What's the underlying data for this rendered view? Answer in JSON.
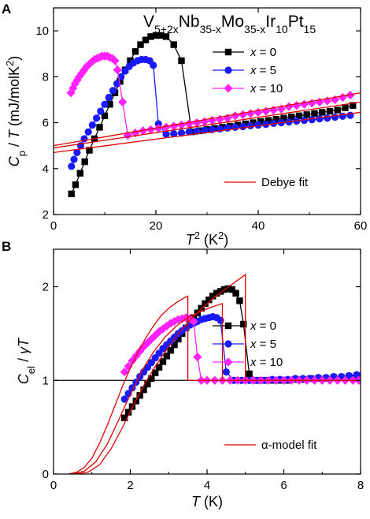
{
  "colors": {
    "x0": "#000000",
    "x5": "#1a1aff",
    "x10": "#ff22ff",
    "fit": "#e00000"
  },
  "chart_data": [
    {
      "panel_label": "A",
      "type": "scatter",
      "formula": {
        "base": "V",
        "parts": [
          {
            "t": "V",
            "s": "5+2x"
          },
          {
            "t": "Nb",
            "s": "35-x"
          },
          {
            "t": "Mo",
            "s": "35-x"
          },
          {
            "t": "Ir",
            "s": "10"
          },
          {
            "t": "Pt",
            "s": "15"
          }
        ]
      },
      "xlabel": {
        "main": "T",
        "sup": "2",
        "unit": " (K",
        "unit_sup": "2",
        "end": ")"
      },
      "ylabel": {
        "main": "C",
        "sub": "p",
        "mid": " / T (mJ/molK",
        "sup": "2",
        "end": ")"
      },
      "xlim": [
        0,
        60
      ],
      "ylim": [
        2,
        11
      ],
      "xticks": [
        0,
        20,
        40,
        60
      ],
      "yticks": [
        2,
        4,
        6,
        8,
        10
      ],
      "legend_position": "top-right",
      "series": [
        {
          "name": "x = 0",
          "var": "x",
          "val": " = 0",
          "color": "#000000",
          "marker": "square",
          "x": [
            3.5,
            4.3,
            5.2,
            6.1,
            7.0,
            8.0,
            9.0,
            10.0,
            11.0,
            12.0,
            13.0,
            14.0,
            15.0,
            16.0,
            17.0,
            18.0,
            19.0,
            20.0,
            21.0,
            22.0,
            23.5,
            25.0,
            27.0,
            28.5,
            30.0,
            31.5,
            33.0,
            34.5,
            36.0,
            37.5,
            39.0,
            40.5,
            42.0,
            43.5,
            45.0,
            46.5,
            48.0,
            49.5,
            51.0,
            52.5,
            54.0,
            55.5,
            57.0,
            58.5
          ],
          "y": [
            2.9,
            3.3,
            3.8,
            4.3,
            4.8,
            5.3,
            5.8,
            6.3,
            6.8,
            7.3,
            7.8,
            8.3,
            8.7,
            9.1,
            9.4,
            9.6,
            9.75,
            9.8,
            9.8,
            9.75,
            9.4,
            8.7,
            5.6,
            5.65,
            5.7,
            5.75,
            5.8,
            5.85,
            5.9,
            5.95,
            6.0,
            6.05,
            6.1,
            6.15,
            6.2,
            6.25,
            6.3,
            6.35,
            6.4,
            6.45,
            6.5,
            6.55,
            6.65,
            6.75
          ]
        },
        {
          "name": "x = 5",
          "var": "x",
          "val": " = 5",
          "color": "#1a1aff",
          "marker": "circle",
          "x": [
            3.5,
            4.0,
            4.6,
            5.3,
            6.0,
            6.8,
            7.6,
            8.4,
            9.2,
            10.0,
            10.8,
            11.6,
            12.4,
            13.2,
            14.0,
            14.8,
            15.6,
            16.4,
            17.2,
            18.0,
            18.8,
            19.5,
            20.5,
            22.0,
            23.5,
            25.0,
            26.5,
            28.0,
            29.5,
            31.0,
            32.5,
            34.0,
            35.5,
            37.0,
            38.5,
            40.0,
            41.5,
            43.0,
            44.5,
            46.0,
            47.5,
            49.0,
            50.5,
            52.0,
            53.5,
            55.0,
            56.5,
            58.0
          ],
          "y": [
            4.1,
            4.4,
            4.7,
            5.0,
            5.3,
            5.6,
            5.9,
            6.2,
            6.5,
            6.8,
            7.1,
            7.4,
            7.7,
            8.0,
            8.25,
            8.45,
            8.6,
            8.7,
            8.75,
            8.75,
            8.7,
            8.5,
            5.95,
            5.5,
            5.52,
            5.55,
            5.6,
            5.63,
            5.67,
            5.7,
            5.73,
            5.77,
            5.8,
            5.83,
            5.87,
            5.9,
            5.93,
            5.97,
            6.0,
            6.03,
            6.07,
            6.1,
            6.13,
            6.17,
            6.2,
            6.24,
            6.28,
            6.32
          ]
        },
        {
          "name": "x = 10",
          "var": "x",
          "val": " = 10",
          "color": "#ff22ff",
          "marker": "diamond",
          "x": [
            3.4,
            3.8,
            4.2,
            4.6,
            5.0,
            5.5,
            6.0,
            6.5,
            7.0,
            7.5,
            8.0,
            8.5,
            9.0,
            9.5,
            10.0,
            10.5,
            11.0,
            11.5,
            12.0,
            12.5,
            13.5,
            14.5,
            16.0,
            17.5,
            19.0,
            20.5,
            22.0,
            23.5,
            25.0,
            26.5,
            28.0,
            29.5,
            31.0,
            32.5,
            34.0,
            35.5,
            37.0,
            38.5,
            40.0,
            41.5,
            43.0,
            44.5,
            46.0,
            47.5,
            49.0,
            50.5,
            52.0,
            53.5,
            55.0,
            56.5,
            58.0
          ],
          "y": [
            7.3,
            7.5,
            7.7,
            7.85,
            8.0,
            8.15,
            8.3,
            8.45,
            8.55,
            8.65,
            8.75,
            8.8,
            8.85,
            8.9,
            8.9,
            8.9,
            8.85,
            8.8,
            8.7,
            8.3,
            6.9,
            5.45,
            5.55,
            5.65,
            5.7,
            5.75,
            5.8,
            5.85,
            5.9,
            5.95,
            6.0,
            6.05,
            6.1,
            6.15,
            6.2,
            6.3,
            6.35,
            6.4,
            6.45,
            6.5,
            6.55,
            6.6,
            6.7,
            6.75,
            6.8,
            6.85,
            6.9,
            6.95,
            7.0,
            7.1,
            7.2
          ]
        }
      ],
      "fit_name": "Debye fit",
      "fit_lines": [
        {
          "x": [
            0,
            60
          ],
          "y": [
            4.9,
            6.9
          ]
        },
        {
          "x": [
            0,
            60
          ],
          "y": [
            4.7,
            6.45
          ]
        },
        {
          "x": [
            0,
            60
          ],
          "y": [
            5.0,
            7.3
          ]
        }
      ]
    },
    {
      "panel_label": "B",
      "type": "scatter",
      "xlabel": {
        "main": "T",
        "unit": " (K)"
      },
      "ylabel": {
        "main": "C",
        "sub": "el",
        "mid": " / γT"
      },
      "xlim": [
        0,
        8
      ],
      "ylim": [
        0,
        2.4
      ],
      "xticks": [
        0,
        2,
        4,
        6,
        8
      ],
      "yticks": [
        0,
        1,
        2
      ],
      "legend_position": "top-right",
      "reference_line_y": 1,
      "series": [
        {
          "name": "x = 0",
          "var": "x",
          "val": " = 0",
          "color": "#000000",
          "marker": "square",
          "x": [
            1.85,
            1.95,
            2.05,
            2.15,
            2.25,
            2.35,
            2.45,
            2.55,
            2.65,
            2.75,
            2.85,
            2.95,
            3.05,
            3.15,
            3.25,
            3.35,
            3.45,
            3.55,
            3.65,
            3.75,
            3.85,
            3.95,
            4.05,
            4.15,
            4.25,
            4.35,
            4.45,
            4.55,
            4.65,
            4.75,
            4.85,
            4.95,
            5.1,
            5.3,
            5.5,
            5.7,
            5.9,
            6.1,
            6.3,
            6.5,
            6.7,
            6.9,
            7.1,
            7.3,
            7.5,
            7.7,
            7.9
          ],
          "y": [
            0.6,
            0.66,
            0.72,
            0.78,
            0.84,
            0.9,
            0.96,
            1.02,
            1.08,
            1.14,
            1.2,
            1.26,
            1.32,
            1.38,
            1.44,
            1.5,
            1.56,
            1.62,
            1.67,
            1.72,
            1.77,
            1.82,
            1.86,
            1.9,
            1.93,
            1.95,
            1.97,
            1.98,
            1.97,
            1.93,
            1.85,
            1.6,
            1.07,
            1.0,
            1.0,
            1.0,
            1.0,
            1.0,
            1.01,
            1.01,
            1.02,
            1.02,
            1.02,
            1.03,
            1.03,
            1.04,
            1.05
          ]
        },
        {
          "name": "x = 5",
          "var": "x",
          "val": " = 5",
          "color": "#1a1aff",
          "marker": "circle",
          "x": [
            1.85,
            1.95,
            2.05,
            2.15,
            2.25,
            2.35,
            2.45,
            2.55,
            2.65,
            2.75,
            2.85,
            2.95,
            3.05,
            3.15,
            3.25,
            3.35,
            3.45,
            3.55,
            3.65,
            3.75,
            3.85,
            3.95,
            4.05,
            4.15,
            4.25,
            4.35,
            4.5,
            4.7,
            4.9,
            5.1,
            5.3,
            5.5,
            5.7,
            5.9,
            6.1,
            6.3,
            6.5,
            6.7,
            6.9,
            7.1,
            7.3,
            7.5,
            7.7,
            7.9
          ],
          "y": [
            0.8,
            0.86,
            0.92,
            0.98,
            1.04,
            1.09,
            1.14,
            1.19,
            1.24,
            1.29,
            1.34,
            1.38,
            1.42,
            1.46,
            1.5,
            1.53,
            1.56,
            1.59,
            1.61,
            1.63,
            1.65,
            1.66,
            1.67,
            1.68,
            1.67,
            1.64,
            1.09,
            1.0,
            1.0,
            1.0,
            1.0,
            1.0,
            1.01,
            1.01,
            1.01,
            1.02,
            1.02,
            1.02,
            1.03,
            1.03,
            1.04,
            1.04,
            1.05,
            1.06
          ]
        },
        {
          "name": "x = 10",
          "var": "x",
          "val": " = 10",
          "color": "#ff22ff",
          "marker": "diamond",
          "x": [
            1.85,
            1.95,
            2.05,
            2.15,
            2.25,
            2.35,
            2.45,
            2.55,
            2.65,
            2.75,
            2.85,
            2.95,
            3.05,
            3.15,
            3.25,
            3.35,
            3.45,
            3.55,
            3.65,
            3.75,
            3.85,
            4.0,
            4.2,
            4.4,
            4.6,
            4.8,
            5.0,
            5.2,
            5.4,
            5.6,
            5.8,
            6.0,
            6.2,
            6.4,
            6.6,
            6.8,
            7.0,
            7.2,
            7.4,
            7.6,
            7.8,
            7.95
          ],
          "y": [
            1.09,
            1.15,
            1.21,
            1.26,
            1.31,
            1.36,
            1.4,
            1.44,
            1.48,
            1.52,
            1.55,
            1.58,
            1.61,
            1.63,
            1.65,
            1.66,
            1.67,
            1.66,
            1.63,
            1.25,
            1.0,
            1.0,
            1.0,
            1.0,
            1.0,
            1.0,
            1.0,
            1.0,
            1.0,
            1.0,
            1.0,
            1.0,
            1.0,
            1.0,
            1.0,
            1.0,
            1.0,
            1.0,
            1.0,
            1.0,
            1.0,
            1.0
          ]
        }
      ],
      "fit_name": "α-model fit",
      "fit_lines": [
        {
          "x": [
            0.4,
            0.6,
            0.8,
            1.0,
            1.2,
            1.4,
            1.6,
            1.8,
            2.0,
            2.2,
            2.4,
            2.6,
            2.8,
            3.0,
            3.2,
            3.4,
            3.5,
            3.5,
            4.0,
            5.0,
            6.0,
            7.0,
            8.0
          ],
          "y": [
            0.0,
            0.02,
            0.07,
            0.17,
            0.33,
            0.52,
            0.73,
            0.94,
            1.13,
            1.3,
            1.45,
            1.58,
            1.69,
            1.77,
            1.83,
            1.88,
            1.9,
            1.0,
            1.0,
            1.0,
            1.0,
            1.0,
            1.0
          ]
        },
        {
          "x": [
            0.5,
            0.8,
            1.1,
            1.4,
            1.7,
            2.0,
            2.3,
            2.6,
            2.9,
            3.2,
            3.5,
            3.8,
            4.1,
            4.4,
            4.4,
            5.0,
            6.0,
            7.0,
            8.0
          ],
          "y": [
            0.0,
            0.03,
            0.13,
            0.32,
            0.58,
            0.85,
            1.1,
            1.3,
            1.46,
            1.58,
            1.67,
            1.73,
            1.78,
            1.82,
            1.0,
            1.0,
            1.0,
            1.0,
            1.0
          ]
        },
        {
          "x": [
            0.6,
            0.9,
            1.2,
            1.5,
            1.8,
            2.1,
            2.4,
            2.7,
            3.0,
            3.3,
            3.6,
            3.9,
            4.2,
            4.5,
            4.8,
            5.0,
            5.0,
            6.0,
            7.0,
            8.0
          ],
          "y": [
            0.0,
            0.02,
            0.1,
            0.27,
            0.5,
            0.75,
            0.98,
            1.18,
            1.36,
            1.52,
            1.66,
            1.78,
            1.89,
            1.98,
            2.07,
            2.13,
            1.0,
            1.0,
            1.0,
            1.0
          ]
        }
      ]
    }
  ]
}
